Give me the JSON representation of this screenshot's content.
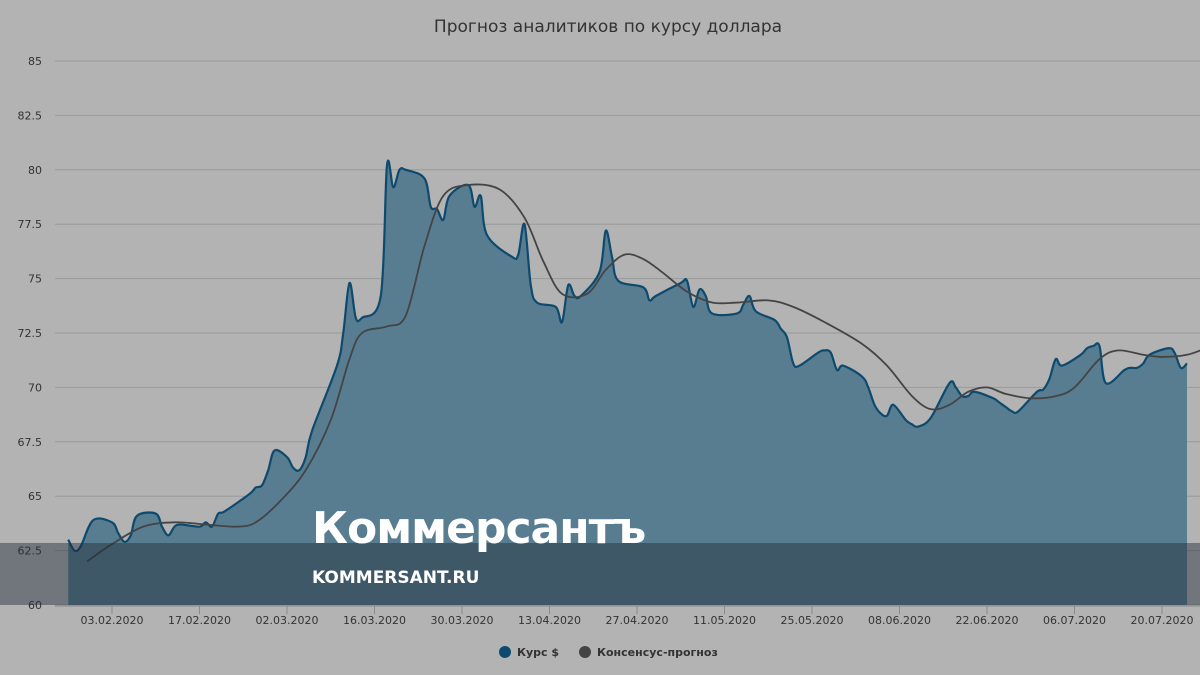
{
  "chart_data": {
    "type": "area",
    "title": "Прогноз аналитиков по курсу доллара",
    "xlabel": "",
    "ylabel": "",
    "ylim": [
      60,
      85
    ],
    "yticks": [
      "85",
      "82.5",
      "80",
      "77.5",
      "75",
      "72.5",
      "70",
      "67.5",
      "65",
      "62.5",
      "60"
    ],
    "xticks": [
      "03.02.2020",
      "17.02.2020",
      "02.03.2020",
      "16.03.2020",
      "30.03.2020",
      "13.04.2020",
      "27.04.2020",
      "11.05.2020",
      "25.05.2020",
      "08.06.2020",
      "22.06.2020",
      "06.07.2020",
      "20.07.2020"
    ],
    "grid": true,
    "legend_position": "bottom-center",
    "series": [
      {
        "name": "Курс $",
        "color": "#0d4a6e",
        "fill": "#587d91",
        "points": [
          [
            "27.01.2020",
            63.0
          ],
          [
            "28.01.2020",
            62.5
          ],
          [
            "29.01.2020",
            62.7
          ],
          [
            "31.01.2020",
            63.9
          ],
          [
            "03.02.2020",
            63.8
          ],
          [
            "04.02.2020",
            63.3
          ],
          [
            "05.02.2020",
            62.9
          ],
          [
            "06.02.2020",
            63.2
          ],
          [
            "07.02.2020",
            64.1
          ],
          [
            "10.02.2020",
            64.2
          ],
          [
            "11.02.2020",
            63.6
          ],
          [
            "12.02.2020",
            63.2
          ],
          [
            "13.02.2020",
            63.6
          ],
          [
            "14.02.2020",
            63.7
          ],
          [
            "17.02.2020",
            63.6
          ],
          [
            "18.02.2020",
            63.8
          ],
          [
            "19.02.2020",
            63.6
          ],
          [
            "20.02.2020",
            64.2
          ],
          [
            "21.02.2020",
            64.3
          ],
          [
            "25.02.2020",
            65.1
          ],
          [
            "26.02.2020",
            65.4
          ],
          [
            "27.02.2020",
            65.5
          ],
          [
            "28.02.2020",
            66.2
          ],
          [
            "29.02.2020",
            67.1
          ],
          [
            "02.03.2020",
            66.8
          ],
          [
            "03.03.2020",
            66.3
          ],
          [
            "04.03.2020",
            66.2
          ],
          [
            "05.03.2020",
            66.8
          ],
          [
            "06.03.2020",
            68.0
          ],
          [
            "10.03.2020",
            71.0
          ],
          [
            "11.03.2020",
            72.5
          ],
          [
            "12.03.2020",
            74.8
          ],
          [
            "13.03.2020",
            73.2
          ],
          [
            "14.03.2020",
            73.2
          ],
          [
            "17.03.2020",
            74.2
          ],
          [
            "18.03.2020",
            80.2
          ],
          [
            "19.03.2020",
            79.2
          ],
          [
            "20.03.2020",
            80.0
          ],
          [
            "21.03.2020",
            80.0
          ],
          [
            "24.03.2020",
            79.6
          ],
          [
            "25.03.2020",
            78.3
          ],
          [
            "26.03.2020",
            78.2
          ],
          [
            "27.03.2020",
            77.7
          ],
          [
            "28.03.2020",
            78.8
          ],
          [
            "31.03.2020",
            79.3
          ],
          [
            "01.04.2020",
            78.3
          ],
          [
            "02.04.2020",
            78.8
          ],
          [
            "03.04.2020",
            77.0
          ],
          [
            "07.04.2020",
            76.0
          ],
          [
            "08.04.2020",
            76.1
          ],
          [
            "09.04.2020",
            77.5
          ],
          [
            "10.04.2020",
            74.7
          ],
          [
            "11.04.2020",
            73.9
          ],
          [
            "14.04.2020",
            73.7
          ],
          [
            "15.04.2020",
            73.0
          ],
          [
            "16.04.2020",
            74.7
          ],
          [
            "17.04.2020",
            74.2
          ],
          [
            "18.04.2020",
            74.2
          ],
          [
            "21.04.2020",
            75.3
          ],
          [
            "22.04.2020",
            77.2
          ],
          [
            "23.04.2020",
            76.0
          ],
          [
            "24.04.2020",
            74.9
          ],
          [
            "28.04.2020",
            74.6
          ],
          [
            "29.04.2020",
            74.0
          ],
          [
            "30.04.2020",
            74.2
          ],
          [
            "04.05.2020",
            74.8
          ],
          [
            "05.05.2020",
            74.9
          ],
          [
            "06.05.2020",
            73.7
          ],
          [
            "07.05.2020",
            74.5
          ],
          [
            "08.05.2020",
            74.2
          ],
          [
            "09.05.2020",
            73.4
          ],
          [
            "13.05.2020",
            73.4
          ],
          [
            "14.05.2020",
            73.8
          ],
          [
            "15.05.2020",
            74.2
          ],
          [
            "16.05.2020",
            73.5
          ],
          [
            "19.05.2020",
            73.1
          ],
          [
            "20.05.2020",
            72.7
          ],
          [
            "21.05.2020",
            72.3
          ],
          [
            "22.05.2020",
            71.1
          ],
          [
            "23.05.2020",
            71.0
          ],
          [
            "26.05.2020",
            71.6
          ],
          [
            "27.05.2020",
            71.7
          ],
          [
            "28.05.2020",
            71.6
          ],
          [
            "29.05.2020",
            70.8
          ],
          [
            "30.05.2020",
            71.0
          ],
          [
            "02.06.2020",
            70.5
          ],
          [
            "03.06.2020",
            70.0
          ],
          [
            "04.06.2020",
            69.2
          ],
          [
            "05.06.2020",
            68.8
          ],
          [
            "06.06.2020",
            68.7
          ],
          [
            "07.06.2020",
            69.2
          ],
          [
            "09.06.2020",
            68.5
          ],
          [
            "10.06.2020",
            68.3
          ],
          [
            "11.06.2020",
            68.2
          ],
          [
            "13.06.2020",
            68.6
          ],
          [
            "16.06.2020",
            70.2
          ],
          [
            "17.06.2020",
            70.0
          ],
          [
            "18.06.2020",
            69.6
          ],
          [
            "19.06.2020",
            69.6
          ],
          [
            "20.06.2020",
            69.8
          ],
          [
            "23.06.2020",
            69.5
          ],
          [
            "24.06.2020",
            69.3
          ],
          [
            "25.06.2020",
            69.1
          ],
          [
            "26.06.2020",
            68.9
          ],
          [
            "27.06.2020",
            68.9
          ],
          [
            "30.06.2020",
            69.8
          ],
          [
            "01.07.2020",
            69.9
          ],
          [
            "02.07.2020",
            70.4
          ],
          [
            "03.07.2020",
            71.3
          ],
          [
            "04.07.2020",
            71.0
          ],
          [
            "07.07.2020",
            71.5
          ],
          [
            "08.07.2020",
            71.8
          ],
          [
            "09.07.2020",
            71.9
          ],
          [
            "10.07.2020",
            71.9
          ],
          [
            "11.07.2020",
            70.2
          ],
          [
            "14.07.2020",
            70.8
          ],
          [
            "15.07.2020",
            70.9
          ],
          [
            "16.07.2020",
            70.9
          ],
          [
            "17.07.2020",
            71.1
          ],
          [
            "18.07.2020",
            71.5
          ],
          [
            "21.07.2020",
            71.8
          ],
          [
            "22.07.2020",
            71.6
          ],
          [
            "23.07.2020",
            70.9
          ],
          [
            "24.07.2020",
            71.1
          ]
        ]
      },
      {
        "name": "Консенсус-прогноз",
        "color": "#444444",
        "points": [
          [
            "30.01.2020",
            62.0
          ],
          [
            "03.02.2020",
            62.8
          ],
          [
            "08.02.2020",
            63.6
          ],
          [
            "13.02.2020",
            63.8
          ],
          [
            "18.02.2020",
            63.7
          ],
          [
            "23.02.2020",
            63.6
          ],
          [
            "26.02.2020",
            63.8
          ],
          [
            "01.03.2020",
            64.8
          ],
          [
            "05.03.2020",
            66.2
          ],
          [
            "09.03.2020",
            68.5
          ],
          [
            "12.03.2020",
            71.3
          ],
          [
            "14.03.2020",
            72.5
          ],
          [
            "18.03.2020",
            72.8
          ],
          [
            "21.03.2020",
            73.3
          ],
          [
            "24.03.2020",
            76.5
          ],
          [
            "27.03.2020",
            78.8
          ],
          [
            "31.03.2020",
            79.3
          ],
          [
            "05.04.2020",
            79.1
          ],
          [
            "09.04.2020",
            77.8
          ],
          [
            "12.04.2020",
            75.8
          ],
          [
            "15.04.2020",
            74.3
          ],
          [
            "19.04.2020",
            74.3
          ],
          [
            "22.04.2020",
            75.4
          ],
          [
            "25.04.2020",
            76.1
          ],
          [
            "28.04.2020",
            75.9
          ],
          [
            "01.05.2020",
            75.3
          ],
          [
            "05.05.2020",
            74.4
          ],
          [
            "09.05.2020",
            73.9
          ],
          [
            "13.05.2020",
            73.9
          ],
          [
            "18.05.2020",
            74.0
          ],
          [
            "22.05.2020",
            73.7
          ],
          [
            "27.05.2020",
            73.0
          ],
          [
            "02.06.2020",
            72.0
          ],
          [
            "06.06.2020",
            71.0
          ],
          [
            "10.06.2020",
            69.6
          ],
          [
            "13.06.2020",
            69.0
          ],
          [
            "16.06.2020",
            69.2
          ],
          [
            "19.06.2020",
            69.8
          ],
          [
            "22.06.2020",
            70.0
          ],
          [
            "25.06.2020",
            69.7
          ],
          [
            "29.06.2020",
            69.5
          ],
          [
            "03.07.2020",
            69.6
          ],
          [
            "06.07.2020",
            70.0
          ],
          [
            "10.07.2020",
            71.3
          ],
          [
            "13.07.2020",
            71.7
          ],
          [
            "17.07.2020",
            71.5
          ],
          [
            "20.07.2020",
            71.4
          ],
          [
            "24.07.2020",
            71.5
          ],
          [
            "27.07.2020",
            71.8
          ]
        ]
      }
    ]
  },
  "watermark": {
    "logo_text": "Коммерсантъ",
    "site_text": "KOMMERSANT.RU"
  },
  "colors": {
    "background": "#b3b3b3",
    "grid": "#9a9a9a",
    "area_fill": "#587d91",
    "area_line": "#0d4a6e",
    "consensus_line": "#444444",
    "watermark_band": "#3e4f5a"
  }
}
